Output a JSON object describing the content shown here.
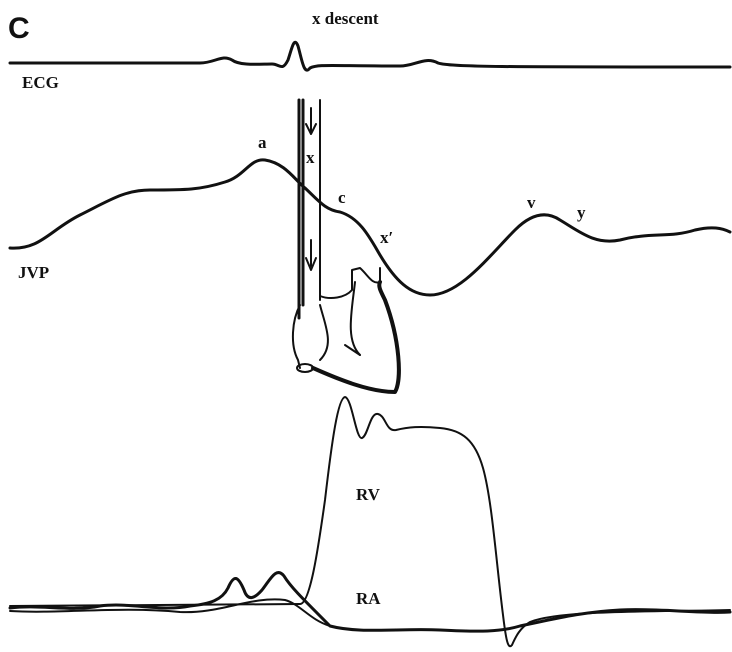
{
  "panel_label": "C",
  "labels": {
    "x_descent": "x descent",
    "ecg": "ECG",
    "jvp": "JVP",
    "a": "a",
    "x": "x",
    "c": "c",
    "x_prime": "x′",
    "v": "v",
    "y": "y",
    "rv": "RV",
    "ra": "RA"
  }
}
